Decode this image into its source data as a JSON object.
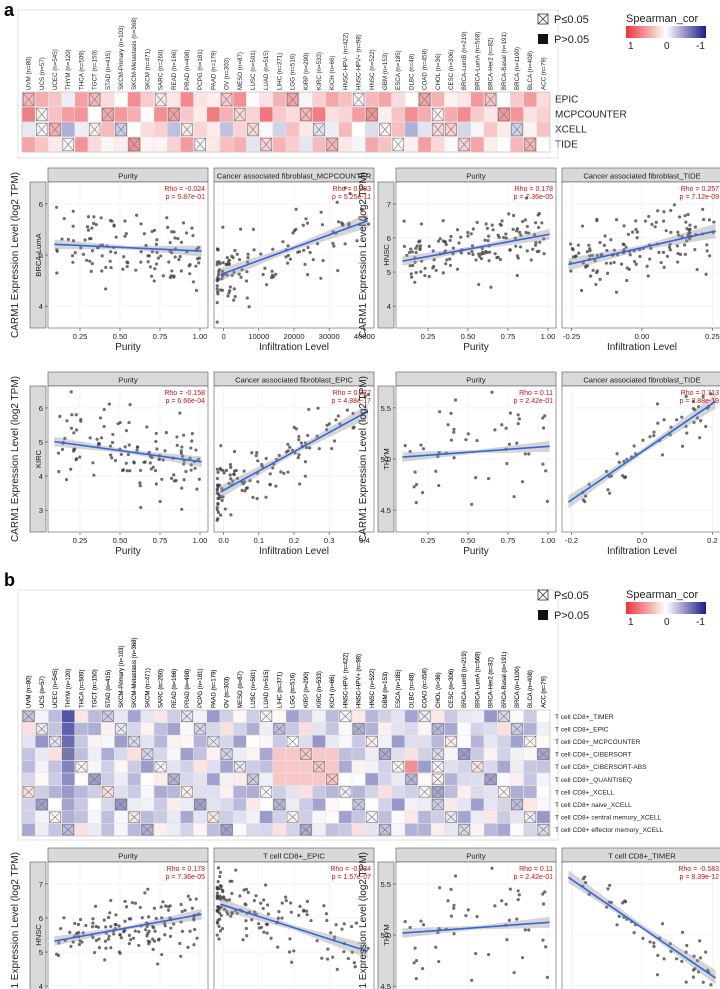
{
  "panel_labels": {
    "a": "a",
    "b": "b"
  },
  "cancers": [
    "UVM (n=80)",
    "UCS (n=57)",
    "UCEC (n=545)",
    "THYM (n=120)",
    "THCA (n=509)",
    "TGCT (n=150)",
    "STAD (n=415)",
    "SKCM-Primary (n=103)",
    "SKCM-Metastasis (n=368)",
    "SKCM (n=471)",
    "SARC (n=260)",
    "READ (n=166)",
    "PRAD (n=498)",
    "PCPG (n=181)",
    "PAAD (n=179)",
    "OV (n=303)",
    "MESO (n=87)",
    "LUSC (n=501)",
    "LUAD (n=515)",
    "LIHC (n=371)",
    "LGG (n=516)",
    "KIRP (n=290)",
    "KIRC (n=533)",
    "KICH (n=66)",
    "HNSC-HPV- (n=422)",
    "HNSC-HPV+ (n=98)",
    "HNSC (n=522)",
    "GBM (n=153)",
    "ESCA (n=185)",
    "DLBC (n=48)",
    "COAD (n=458)",
    "CHOL (n=36)",
    "CESC (n=306)",
    "BRCA-LumB (n=219)",
    "BRCA-LumA (n=568)",
    "BRCA-Her2 (n=82)",
    "BRCA-Basal (n=191)",
    "BRCA (n=1100)",
    "BLCA (n=408)",
    "ACC (n=79)"
  ],
  "legend": {
    "sig": "P≤0.05",
    "nonsig": "P>0.05",
    "title": "Spearman_cor",
    "ticks": [
      "1",
      "0",
      "-1"
    ],
    "colors": {
      "pos": "#e8343a",
      "mid": "#ffffff",
      "neg": "#1c1c8a"
    }
  },
  "heatmap_a": {
    "rows": [
      "EPIC",
      "MCPCOUNTER",
      "XCELL",
      "TIDE"
    ]
  },
  "heatmap_b": {
    "rows": [
      "T cell CD8+_TIMER",
      "T cell CD8+_EPIC",
      "T cell CD8+_MCPCOUNTER",
      "T cell CD8+_CIBERSORT",
      "T cell CD8+_CIBERSORT-ABS",
      "T cell CD8+_QUANTISEQ",
      "T cell CD8+_XCELL",
      "T cell CD8+ naive_XCELL",
      "T cell CD8+ central memory_XCELL",
      "T cell CD8+ effector memory_XCELL"
    ]
  },
  "scatter": {
    "ylabel": "CARM1 Expression Level (log2 TPM)",
    "xlabel_purity": "Purity",
    "xlabel_infil": "Infiltration Level",
    "groups": [
      {
        "cancer": "BRCA-LumA",
        "purity": {
          "title": "Purity",
          "rho": "Rho = -0.024",
          "p": "p = 5.87e-01"
        },
        "infil": {
          "title": "Cancer associated fibroblast_MCPCOUNTER",
          "rho": "Rho = 0.283",
          "p": "p = 5.25e-11"
        },
        "yticks": [
          "4",
          "5",
          "6"
        ],
        "xticks_purity": [
          "0.25",
          "0.50",
          "0.75",
          "1.00"
        ],
        "xticks_infil": [
          "0",
          "10000",
          "20000",
          "30000",
          "40000"
        ]
      },
      {
        "cancer": "HNSC",
        "purity": {
          "title": "Purity",
          "rho": "Rho = 0.178",
          "p": "p = 7.36e-05"
        },
        "infil": {
          "title": "Cancer associated fibroblast_TIDE",
          "rho": "Rho = 0.257",
          "p": "p = 7.12e-09"
        },
        "yticks": [
          "4",
          "5",
          "6",
          "7"
        ],
        "xticks_purity": [
          "0.25",
          "0.50",
          "0.75",
          "1.00"
        ],
        "xticks_infil": [
          "-0.25",
          "0.00",
          "0.25"
        ]
      },
      {
        "cancer": "KIRC",
        "purity": {
          "title": "Purity",
          "rho": "Rho = -0.158",
          "p": "p = 6.66e-04"
        },
        "infil": {
          "title": "Cancer associated fibroblast_EPIC",
          "rho": "Rho = 0.377",
          "p": "p = 4.88e-17"
        },
        "yticks": [
          "3",
          "4",
          "5",
          "6"
        ],
        "xticks_purity": [
          "0.25",
          "0.50",
          "0.75",
          "1.00"
        ],
        "xticks_infil": [
          "0.0",
          "0.1",
          "0.2",
          "0.3",
          "0.4"
        ]
      },
      {
        "cancer": "THYM",
        "purity": {
          "title": "Purity",
          "rho": "Rho = 0.11",
          "p": "p = 2.42e-01"
        },
        "infil": {
          "title": "Cancer associated fibroblast_TIDE",
          "rho": "Rho = 0.713",
          "p": "p = 3.88e-19"
        },
        "yticks": [
          "4.5",
          "5.0",
          "5.5"
        ],
        "xticks_purity": [
          "0.25",
          "0.50",
          "0.75",
          "1.00"
        ],
        "xticks_infil": [
          "-0.2",
          "0.0",
          "0.2"
        ]
      },
      {
        "cancer": "HNSC",
        "purity": {
          "title": "Purity",
          "rho": "Rho = 0.178",
          "p": "p = 7.36e-05"
        },
        "infil": {
          "title": "T cell CD8+_EPIC",
          "rho": "Rho = -0.234",
          "p": "p = 1.57e-07"
        },
        "yticks": [
          "4",
          "5",
          "6",
          "7"
        ],
        "xticks_purity": [
          "0.25",
          "0.50",
          "0.75",
          "1.00"
        ],
        "xticks_infil": [
          "0.000",
          "0.025",
          "0.050",
          "0.075",
          "0.100"
        ]
      },
      {
        "cancer": "THYM",
        "purity": {
          "title": "Purity",
          "rho": "Rho = 0.11",
          "p": "p = 2.42e-01"
        },
        "infil": {
          "title": "T cell CD8+_TIMER",
          "rho": "Rho = -0.583",
          "p": "p = 8.39e-12"
        },
        "yticks": [
          "4.5",
          "5.0",
          "5.5"
        ],
        "xticks_purity": [
          "0.25",
          "0.50",
          "0.75",
          "1.00"
        ],
        "xticks_infil": [
          "0.0",
          "0.2",
          "0.4",
          "0.6"
        ]
      }
    ]
  },
  "chart_data": [
    {
      "type": "heatmap",
      "title": "Spearman_cor (CAF)",
      "rows": [
        "EPIC",
        "MCPCOUNTER",
        "XCELL",
        "TIDE"
      ],
      "note": "40 cancer types x 4 methods; red = positive, crossed = P<=0.05"
    },
    {
      "type": "scatter",
      "title": "BRCA-LumA Purity",
      "rho": -0.024,
      "p": 0.587
    },
    {
      "type": "scatter",
      "title": "BRCA-LumA CAF_MCPCOUNTER",
      "rho": 0.283,
      "p": 5.25e-11
    },
    {
      "type": "scatter",
      "title": "HNSC Purity",
      "rho": 0.178,
      "p": 7.36e-05
    },
    {
      "type": "scatter",
      "title": "HNSC CAF_TIDE",
      "rho": 0.257,
      "p": 7.12e-09
    },
    {
      "type": "scatter",
      "title": "KIRC Purity",
      "rho": -0.158,
      "p": 0.000666
    },
    {
      "type": "scatter",
      "title": "KIRC CAF_EPIC",
      "rho": 0.377,
      "p": 4.88e-17
    },
    {
      "type": "scatter",
      "title": "THYM Purity",
      "rho": 0.11,
      "p": 0.242
    },
    {
      "type": "scatter",
      "title": "THYM CAF_TIDE",
      "rho": 0.713,
      "p": 3.88e-19
    },
    {
      "type": "heatmap",
      "title": "Spearman_cor (CD8+ T)",
      "rows": 10,
      "note": "40 cancer types x 10 methods"
    },
    {
      "type": "scatter",
      "title": "HNSC T cell CD8+_EPIC",
      "rho": -0.234,
      "p": 1.57e-07
    },
    {
      "type": "scatter",
      "title": "THYM T cell CD8+_TIMER",
      "rho": -0.583,
      "p": 8.39e-12
    }
  ]
}
